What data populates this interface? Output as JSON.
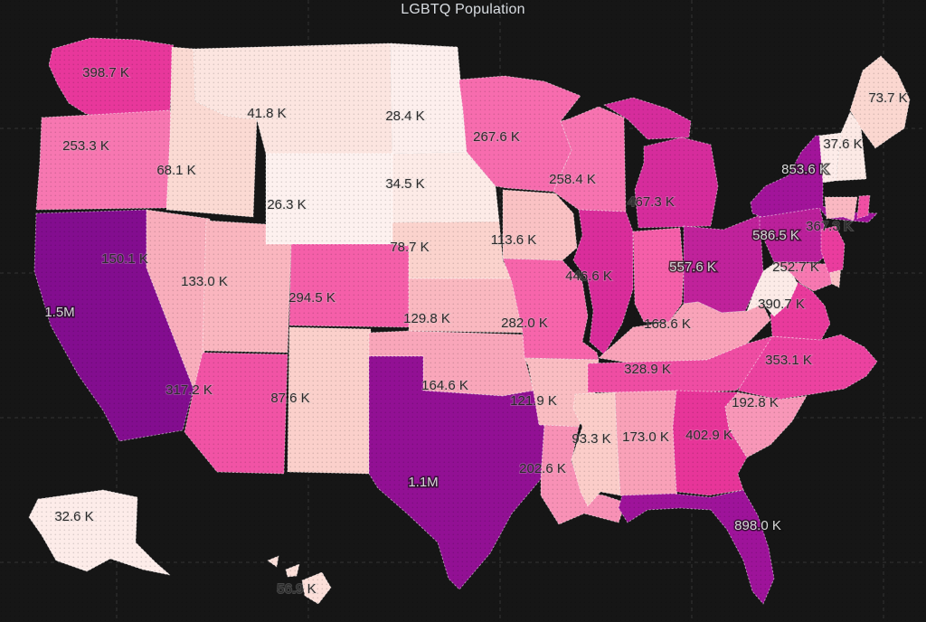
{
  "page": {
    "title": "LGBTQ Population"
  },
  "theme": {
    "background": "#161616",
    "grid_color": "#343434",
    "state_border_color": "rgba(255,255,255,0.55)",
    "label_dark": "#2b2b2b",
    "label_light": "#d8d8d8",
    "title_color": "#d9dde2"
  },
  "chart_data": {
    "type": "choropleth",
    "title": "LGBTQ Population",
    "region": "United States (Albers-style layout, Alaska and Hawaii insets bottom-left)",
    "legend": "none visible",
    "grid": "faint dark graticule lines on near-black background",
    "colorscale": {
      "low": "#fdf1ef",
      "mid": "#f768a1",
      "high": "#830d8f",
      "description": "pale pink (lowest values) through pink/magenta to deep purple (highest values)"
    },
    "states": [
      {
        "abbr": "WA",
        "name": "Washington",
        "label": "398.7 K",
        "value": 398700,
        "fill": "#e8379b",
        "label_tone": "dark"
      },
      {
        "abbr": "OR",
        "name": "Oregon",
        "label": "253.3 K",
        "value": 253300,
        "fill": "#f777b1",
        "label_tone": "dark"
      },
      {
        "abbr": "CA",
        "name": "California",
        "label": "1.5M",
        "value": 1500000,
        "fill": "#830d8f",
        "label_tone": "light"
      },
      {
        "abbr": "NV",
        "name": "Nevada",
        "label": "150.1 K",
        "value": 150100,
        "fill": "#f9aebc",
        "label_tone": "dark"
      },
      {
        "abbr": "ID",
        "name": "Idaho",
        "label": "68.1 K",
        "value": 68100,
        "fill": "#fbdad3",
        "label_tone": "dark"
      },
      {
        "abbr": "MT",
        "name": "Montana",
        "label": "41.8 K",
        "value": 41800,
        "fill": "#fce5e0",
        "label_tone": "dark"
      },
      {
        "abbr": "WY",
        "name": "Wyoming",
        "label": "26.3 K",
        "value": 26300,
        "fill": "#fdf1ef",
        "label_tone": "dark"
      },
      {
        "abbr": "UT",
        "name": "Utah",
        "label": "133.0 K",
        "value": 133000,
        "fill": "#fab6bf",
        "label_tone": "dark"
      },
      {
        "abbr": "CO",
        "name": "Colorado",
        "label": "294.5 K",
        "value": 294500,
        "fill": "#f55fa9",
        "label_tone": "dark"
      },
      {
        "abbr": "AZ",
        "name": "Arizona",
        "label": "317.2 K",
        "value": 317200,
        "fill": "#f153a5",
        "label_tone": "dark"
      },
      {
        "abbr": "NM",
        "name": "New Mexico",
        "label": "87.6 K",
        "value": 87600,
        "fill": "#fbd0cb",
        "label_tone": "dark"
      },
      {
        "abbr": "ND",
        "name": "North Dakota",
        "label": "28.4 K",
        "value": 28400,
        "fill": "#fdefed",
        "label_tone": "dark"
      },
      {
        "abbr": "SD",
        "name": "South Dakota",
        "label": "34.5 K",
        "value": 34500,
        "fill": "#fdebe7",
        "label_tone": "dark"
      },
      {
        "abbr": "NE",
        "name": "Nebraska",
        "label": "78.7 K",
        "value": 78700,
        "fill": "#fbd3cd",
        "label_tone": "dark"
      },
      {
        "abbr": "KS",
        "name": "Kansas",
        "label": "129.8 K",
        "value": 129800,
        "fill": "#fab8c0",
        "label_tone": "dark"
      },
      {
        "abbr": "OK",
        "name": "Oklahoma",
        "label": "164.6 K",
        "value": 164600,
        "fill": "#f9a6ba",
        "label_tone": "dark"
      },
      {
        "abbr": "TX",
        "name": "Texas",
        "label": "1.1M",
        "value": 1100000,
        "fill": "#921094",
        "label_tone": "light"
      },
      {
        "abbr": "MN",
        "name": "Minnesota",
        "label": "267.6 K",
        "value": 267600,
        "fill": "#f76cae",
        "label_tone": "dark"
      },
      {
        "abbr": "IA",
        "name": "Iowa",
        "label": "113.6 K",
        "value": 113600,
        "fill": "#fac2c4",
        "label_tone": "dark"
      },
      {
        "abbr": "MO",
        "name": "Missouri",
        "label": "282.0 K",
        "value": 282000,
        "fill": "#f765ab",
        "label_tone": "dark"
      },
      {
        "abbr": "AR",
        "name": "Arkansas",
        "label": "121.9 K",
        "value": 121900,
        "fill": "#fabdc2",
        "label_tone": "dark"
      },
      {
        "abbr": "LA",
        "name": "Louisiana",
        "label": "202.6 K",
        "value": 202600,
        "fill": "#f891b6",
        "label_tone": "dark"
      },
      {
        "abbr": "WI",
        "name": "Wisconsin",
        "label": "258.4 K",
        "value": 258400,
        "fill": "#f773b0",
        "label_tone": "dark"
      },
      {
        "abbr": "IL",
        "name": "Illinois",
        "label": "446.6 K",
        "value": 446600,
        "fill": "#da2d9b",
        "label_tone": "dark"
      },
      {
        "abbr": "MI",
        "name": "Michigan",
        "label": "467.3 K",
        "value": 467300,
        "fill": "#d62c9c",
        "label_tone": "dark"
      },
      {
        "abbr": "IN",
        "name": "Indiana",
        "label": "",
        "value": null,
        "fill": "#f55fa9",
        "label_tone": "dark"
      },
      {
        "abbr": "OH",
        "name": "Ohio",
        "label": "557.6 K",
        "value": 557600,
        "fill": "#c0229b",
        "label_tone": "light"
      },
      {
        "abbr": "KY",
        "name": "Kentucky",
        "label": "168.6 K",
        "value": 168600,
        "fill": "#f9a3b9",
        "label_tone": "dark"
      },
      {
        "abbr": "TN",
        "name": "Tennessee",
        "label": "328.9 K",
        "value": 328900,
        "fill": "#ef4da3",
        "label_tone": "dark"
      },
      {
        "abbr": "MS",
        "name": "Mississippi",
        "label": "93.3 K",
        "value": 93300,
        "fill": "#fbcdc9",
        "label_tone": "dark"
      },
      {
        "abbr": "AL",
        "name": "Alabama",
        "label": "173.0 K",
        "value": 173000,
        "fill": "#f9a1b8",
        "label_tone": "dark"
      },
      {
        "abbr": "GA",
        "name": "Georgia",
        "label": "402.9 K",
        "value": 402900,
        "fill": "#e73599",
        "label_tone": "dark"
      },
      {
        "abbr": "FL",
        "name": "Florida",
        "label": "898.0 K",
        "value": 898000,
        "fill": "#9e139a",
        "label_tone": "light"
      },
      {
        "abbr": "SC",
        "name": "South Carolina",
        "label": "192.8 K",
        "value": 192800,
        "fill": "#f897b8",
        "label_tone": "dark"
      },
      {
        "abbr": "NC",
        "name": "North Carolina",
        "label": "353.1 K",
        "value": 353100,
        "fill": "#ec42a0",
        "label_tone": "dark"
      },
      {
        "abbr": "VA",
        "name": "Virginia",
        "label": "390.7 K",
        "value": 390700,
        "fill": "#e93a9c",
        "label_tone": "dark"
      },
      {
        "abbr": "WV",
        "name": "West Virginia",
        "label": "",
        "value": null,
        "fill": "#fcebe7",
        "label_tone": "dark"
      },
      {
        "abbr": "MD",
        "name": "Maryland",
        "label": "252.7 K",
        "value": 252700,
        "fill": "#f778b1",
        "label_tone": "dark"
      },
      {
        "abbr": "DE",
        "name": "Delaware",
        "label": "",
        "value": null,
        "fill": "#fac2c6",
        "label_tone": "dark"
      },
      {
        "abbr": "PA",
        "name": "Pennsylvania",
        "label": "586.5 K",
        "value": 586500,
        "fill": "#bb209b",
        "label_tone": "light"
      },
      {
        "abbr": "NJ",
        "name": "New Jersey",
        "label": "367.3 K",
        "value": 367300,
        "fill": "#ea3c9e",
        "label_tone": "dark"
      },
      {
        "abbr": "NY",
        "name": "New York",
        "label": "853.6 K",
        "value": 853600,
        "fill": "#a2149a",
        "label_tone": "light"
      },
      {
        "abbr": "CT",
        "name": "Connecticut",
        "label": "",
        "value": null,
        "fill": "#fab8c2",
        "label_tone": "dark"
      },
      {
        "abbr": "RI",
        "name": "Rhode Island",
        "label": "",
        "value": null,
        "fill": "#f14fa4",
        "label_tone": "dark"
      },
      {
        "abbr": "VT",
        "name": "Vermont",
        "label": "",
        "value": null,
        "fill": "#fdece9",
        "label_tone": "dark"
      },
      {
        "abbr": "NH",
        "name": "New Hampshire",
        "label": "37.6 K",
        "value": 37600,
        "fill": "#fce9e5",
        "label_tone": "dark"
      },
      {
        "abbr": "ME",
        "name": "Maine",
        "label": "73.7 K",
        "value": 73700,
        "fill": "#fbd7d0",
        "label_tone": "dark"
      },
      {
        "abbr": "AK",
        "name": "Alaska",
        "label": "32.6 K",
        "value": 32600,
        "fill": "#fdece9",
        "label_tone": "dark"
      },
      {
        "abbr": "HI",
        "name": "Hawaii",
        "label": "56.9 K",
        "value": 56900,
        "fill": "#fcdfd9",
        "label_tone": "dark"
      }
    ]
  }
}
